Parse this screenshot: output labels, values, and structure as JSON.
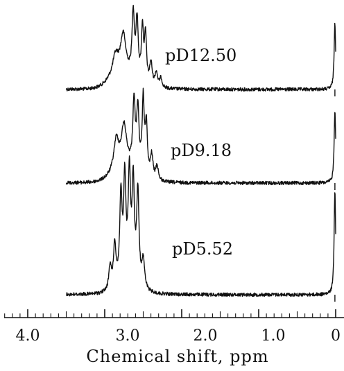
{
  "chart_data": {
    "type": "line",
    "title": "",
    "xlabel": "Chemical shift, ppm",
    "ylabel": "",
    "xlim": [
      4.3,
      0.0
    ],
    "x_reversed": true,
    "grid": false,
    "x_ticks": [
      {
        "value": 4.0,
        "label": "4.0"
      },
      {
        "value": 3.0,
        "label": "3.0"
      },
      {
        "value": 2.0,
        "label": "2.0"
      },
      {
        "value": 1.0,
        "label": "1.0"
      },
      {
        "value": 0.0,
        "label": "0"
      }
    ],
    "minor_tick_step": 0.1,
    "series": [
      {
        "name": "pD12.50",
        "range": [
          3.5,
          0.0
        ],
        "peaks": [
          {
            "x": 2.86,
            "h": 0.28,
            "w": 0.045
          },
          {
            "x": 2.76,
            "h": 0.55,
            "w": 0.04
          },
          {
            "x": 2.63,
            "h": 0.95,
            "w": 0.018
          },
          {
            "x": 2.58,
            "h": 0.88,
            "w": 0.018
          },
          {
            "x": 2.51,
            "h": 0.82,
            "w": 0.016
          },
          {
            "x": 2.47,
            "h": 0.72,
            "w": 0.016
          },
          {
            "x": 2.4,
            "h": 0.35,
            "w": 0.02
          },
          {
            "x": 2.33,
            "h": 0.22,
            "w": 0.02
          },
          {
            "x": 2.27,
            "h": 0.14,
            "w": 0.02
          },
          {
            "x": 0.01,
            "h": 1.0,
            "w": 0.012
          }
        ],
        "hump": {
          "x": 2.78,
          "h": 0.25,
          "w": 0.2
        }
      },
      {
        "name": "pD9.18",
        "range": [
          3.5,
          0.0
        ],
        "peaks": [
          {
            "x": 2.85,
            "h": 0.42,
            "w": 0.04
          },
          {
            "x": 2.75,
            "h": 0.55,
            "w": 0.04
          },
          {
            "x": 2.62,
            "h": 0.9,
            "w": 0.018
          },
          {
            "x": 2.57,
            "h": 0.82,
            "w": 0.018
          },
          {
            "x": 2.5,
            "h": 1.0,
            "w": 0.016
          },
          {
            "x": 2.46,
            "h": 0.68,
            "w": 0.016
          },
          {
            "x": 2.39,
            "h": 0.32,
            "w": 0.02
          },
          {
            "x": 2.32,
            "h": 0.2,
            "w": 0.02
          },
          {
            "x": 0.01,
            "h": 1.0,
            "w": 0.012
          }
        ],
        "hump": {
          "x": 2.72,
          "h": 0.2,
          "w": 0.22
        }
      },
      {
        "name": "pD5.52",
        "range": [
          3.5,
          0.0
        ],
        "peaks": [
          {
            "x": 2.93,
            "h": 0.22,
            "w": 0.02
          },
          {
            "x": 2.87,
            "h": 0.4,
            "w": 0.02
          },
          {
            "x": 2.79,
            "h": 0.82,
            "w": 0.018
          },
          {
            "x": 2.74,
            "h": 0.95,
            "w": 0.018
          },
          {
            "x": 2.68,
            "h": 1.0,
            "w": 0.018
          },
          {
            "x": 2.63,
            "h": 0.93,
            "w": 0.018
          },
          {
            "x": 2.57,
            "h": 0.88,
            "w": 0.018
          },
          {
            "x": 2.5,
            "h": 0.28,
            "w": 0.02
          },
          {
            "x": 0.01,
            "h": 1.0,
            "w": 0.012
          }
        ],
        "hump": {
          "x": 2.7,
          "h": 0.08,
          "w": 0.18
        }
      }
    ]
  },
  "labels": {
    "spec_top": "pD12.50",
    "spec_mid": "pD9.18",
    "spec_bot": "pD5.52",
    "tick_40": "4.0",
    "tick_30": "3.0",
    "tick_20": "2.0",
    "tick_10": "1.0",
    "tick_0": "0",
    "axis_title": "Chemical shift, ppm"
  },
  "colors": {
    "ink": "#111111",
    "background": "#ffffff"
  }
}
